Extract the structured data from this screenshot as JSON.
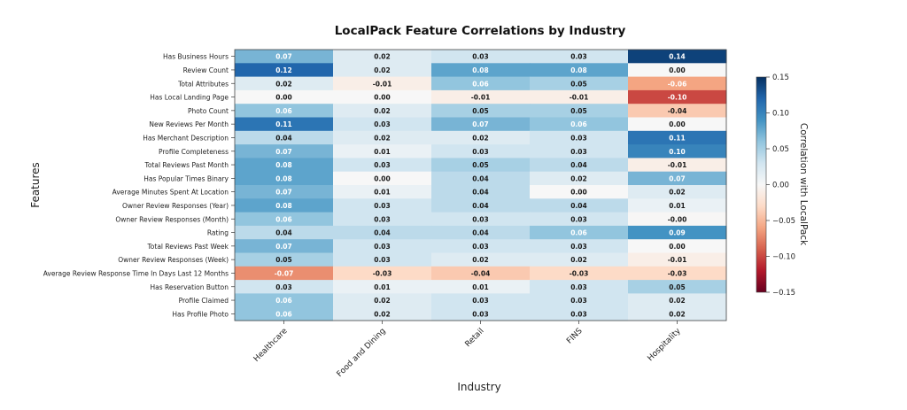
{
  "chart_data": {
    "type": "heatmap",
    "title": "LocalPack Feature Correlations by Industry",
    "xlabel": "Industry",
    "ylabel": "Features",
    "colorbar_label": "Correlation with LocalPack",
    "colormap": "RdBu",
    "vlim": [
      -0.15,
      0.15
    ],
    "colorbar_ticks": [
      "0.15",
      "0.10",
      "0.05",
      "0.00",
      "−0.05",
      "−0.10",
      "−0.15"
    ],
    "colorbar_tick_values": [
      0.15,
      0.1,
      0.05,
      0.0,
      -0.05,
      -0.1,
      -0.15
    ],
    "columns": [
      "Healthcare",
      "Food and Dining",
      "Retail",
      "FINS",
      "Hospitality"
    ],
    "rows": [
      "Has Business Hours",
      "Review Count",
      "Total Attributes",
      "Has Local Landing Page",
      "Photo Count",
      "New Reviews Per Month",
      "Has Merchant Description",
      "Profile Completeness",
      "Total Reviews Past Month",
      "Has Popular Times Binary",
      "Average Minutes Spent At Location",
      "Owner Review Responses (Year)",
      "Owner Review Responses (Month)",
      "Rating",
      "Total Reviews Past Week",
      "Owner Review Responses (Week)",
      "Average Review Response Time In Days Last 12 Months",
      "Has Reservation Button",
      "Profile Claimed",
      "Has Profile Photo"
    ],
    "values": [
      [
        0.07,
        0.02,
        0.03,
        0.03,
        0.14
      ],
      [
        0.12,
        0.02,
        0.08,
        0.08,
        0.0
      ],
      [
        0.02,
        -0.01,
        0.06,
        0.05,
        -0.06
      ],
      [
        0.0,
        0.0,
        -0.01,
        -0.01,
        -0.1
      ],
      [
        0.06,
        0.02,
        0.05,
        0.05,
        -0.04
      ],
      [
        0.11,
        0.03,
        0.07,
        0.06,
        0.0
      ],
      [
        0.04,
        0.02,
        0.02,
        0.03,
        0.11
      ],
      [
        0.07,
        0.01,
        0.03,
        0.03,
        0.1
      ],
      [
        0.08,
        0.03,
        0.05,
        0.04,
        -0.01
      ],
      [
        0.08,
        0.0,
        0.04,
        0.02,
        0.07
      ],
      [
        0.07,
        0.01,
        0.04,
        0.0,
        0.02
      ],
      [
        0.08,
        0.03,
        0.04,
        0.04,
        0.01
      ],
      [
        0.06,
        0.03,
        0.03,
        0.03,
        -0.001
      ],
      [
        0.04,
        0.04,
        0.04,
        0.06,
        0.09
      ],
      [
        0.07,
        0.03,
        0.03,
        0.03,
        0.0
      ],
      [
        0.05,
        0.03,
        0.02,
        0.02,
        -0.01
      ],
      [
        -0.07,
        -0.03,
        -0.04,
        -0.03,
        -0.03
      ],
      [
        0.03,
        0.01,
        0.01,
        0.03,
        0.05
      ],
      [
        0.06,
        0.02,
        0.03,
        0.03,
        0.02
      ],
      [
        0.06,
        0.02,
        0.03,
        0.03,
        0.02
      ]
    ],
    "labels": [
      [
        "0.07",
        "0.02",
        "0.03",
        "0.03",
        "0.14"
      ],
      [
        "0.12",
        "0.02",
        "0.08",
        "0.08",
        "0.00"
      ],
      [
        "0.02",
        "-0.01",
        "0.06",
        "0.05",
        "-0.06"
      ],
      [
        "0.00",
        "0.00",
        "-0.01",
        "-0.01",
        "-0.10"
      ],
      [
        "0.06",
        "0.02",
        "0.05",
        "0.05",
        "-0.04"
      ],
      [
        "0.11",
        "0.03",
        "0.07",
        "0.06",
        "0.00"
      ],
      [
        "0.04",
        "0.02",
        "0.02",
        "0.03",
        "0.11"
      ],
      [
        "0.07",
        "0.01",
        "0.03",
        "0.03",
        "0.10"
      ],
      [
        "0.08",
        "0.03",
        "0.05",
        "0.04",
        "-0.01"
      ],
      [
        "0.08",
        "0.00",
        "0.04",
        "0.02",
        "0.07"
      ],
      [
        "0.07",
        "0.01",
        "0.04",
        "0.00",
        "0.02"
      ],
      [
        "0.08",
        "0.03",
        "0.04",
        "0.04",
        "0.01"
      ],
      [
        "0.06",
        "0.03",
        "0.03",
        "0.03",
        "-0.00"
      ],
      [
        "0.04",
        "0.04",
        "0.04",
        "0.06",
        "0.09"
      ],
      [
        "0.07",
        "0.03",
        "0.03",
        "0.03",
        "0.00"
      ],
      [
        "0.05",
        "0.03",
        "0.02",
        "0.02",
        "-0.01"
      ],
      [
        "-0.07",
        "-0.03",
        "-0.04",
        "-0.03",
        "-0.03"
      ],
      [
        "0.03",
        "0.01",
        "0.01",
        "0.03",
        "0.05"
      ],
      [
        "0.06",
        "0.02",
        "0.03",
        "0.03",
        "0.02"
      ],
      [
        "0.06",
        "0.02",
        "0.03",
        "0.03",
        "0.02"
      ]
    ]
  }
}
